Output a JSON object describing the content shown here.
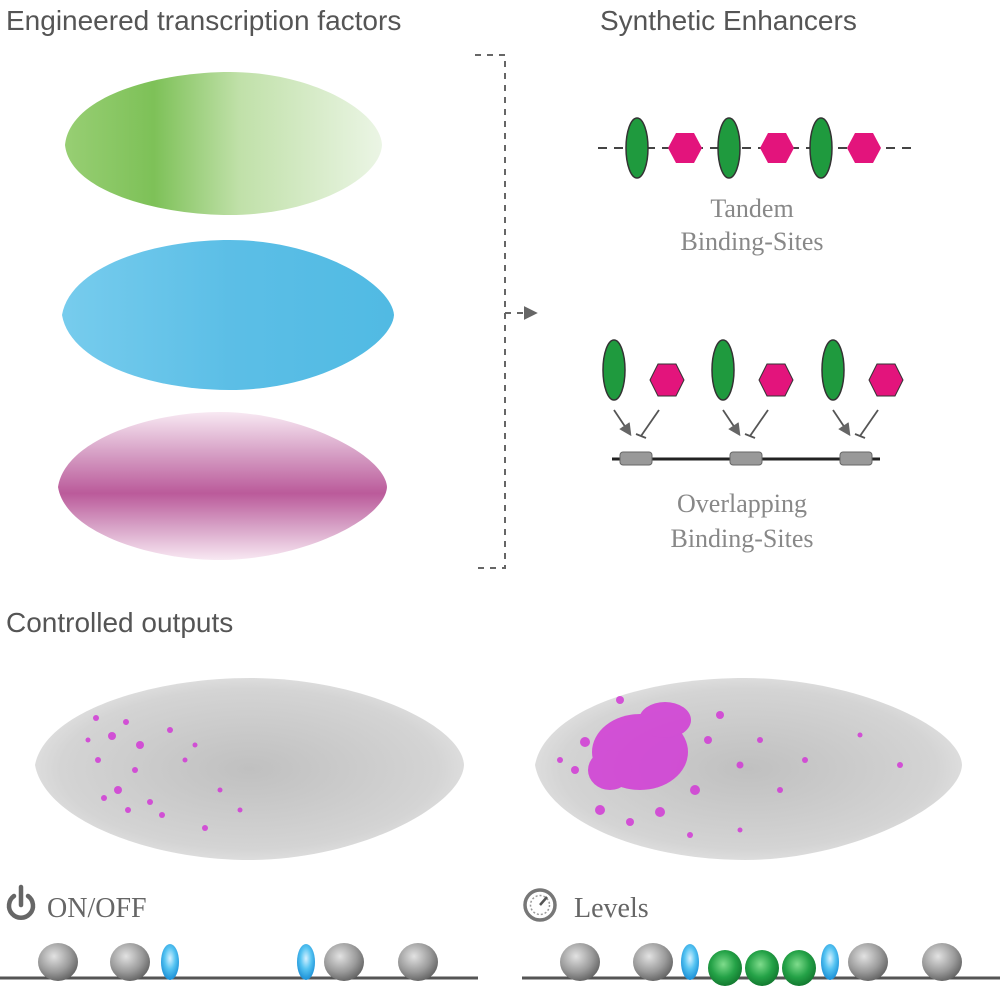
{
  "headings": {
    "tf": "Engineered transcription factors",
    "enhancers": "Synthetic Enhancers",
    "outputs": "Controlled outputs"
  },
  "enhancer_labels": {
    "tandem_line1": "Tandem",
    "tandem_line2": "Binding-Sites",
    "overlap_line1": "Overlapping",
    "overlap_line2": "Binding-Sites"
  },
  "output_labels": {
    "onoff": "ON/OFF",
    "levels": "Levels"
  },
  "colors": {
    "green_tf": "#5fb83a",
    "blue_tf": "#3fb3e2",
    "magenta_tf": "#b3488f",
    "green_site": "#1f9a3e",
    "magenta_site": "#e3147c",
    "nucleosome": "#8c8c8c",
    "output_gray": "#c9c9c9",
    "output_magenta": "#d23ad6",
    "text": "#555555"
  },
  "icons": {
    "onoff": "power-icon",
    "levels": "gauge-icon"
  }
}
